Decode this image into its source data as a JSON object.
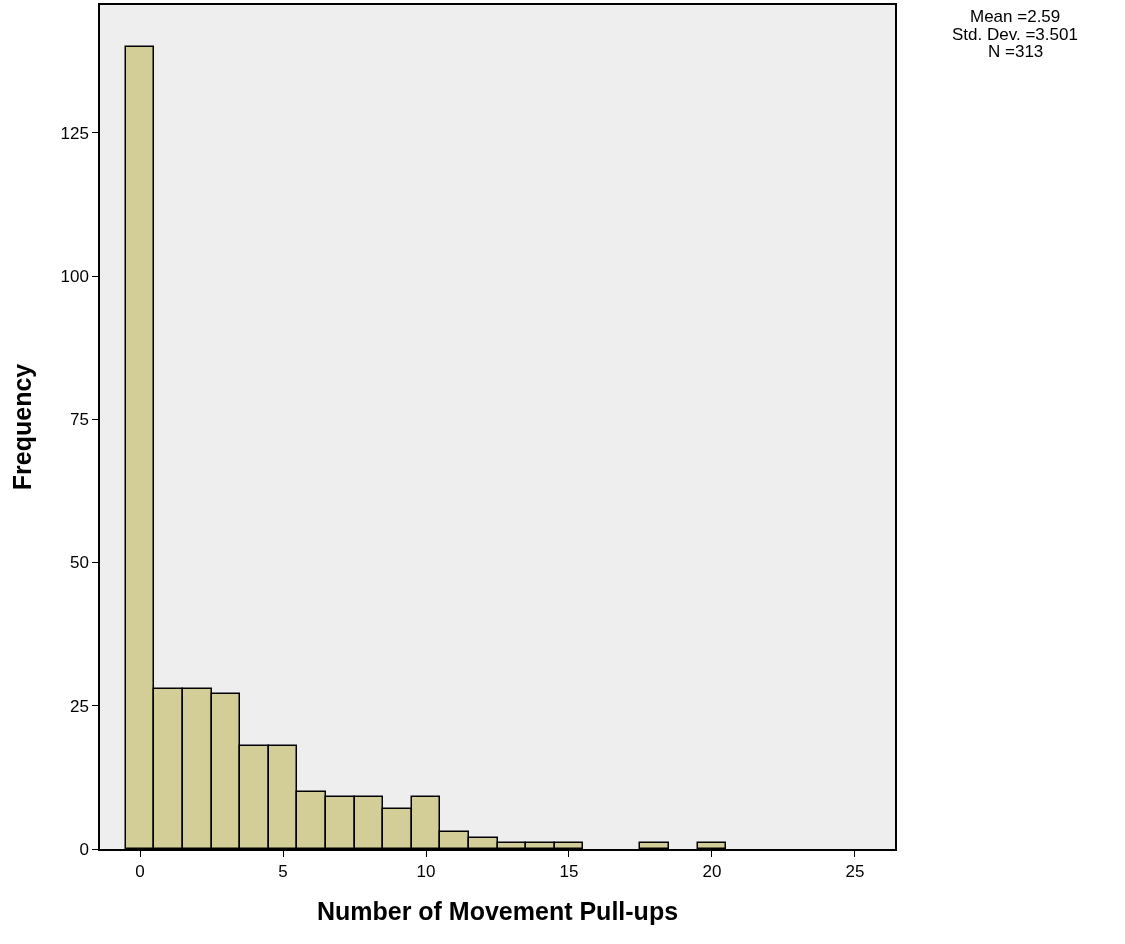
{
  "chart_data": {
    "type": "histogram",
    "xlabel": "Number of Movement Pull-ups",
    "ylabel": "Frequency",
    "annotations": [
      "Mean =2.59",
      "Std. Dev. =3.501",
      "N =313"
    ],
    "bins": [
      -0.5,
      0.5,
      1.5,
      2.5,
      3.5,
      4.5,
      5.5,
      6.5,
      7.5,
      8.5,
      9.5,
      10.5,
      11.5,
      12.5,
      13.5,
      14.5,
      15.5,
      16.5,
      17.5,
      18.5,
      19.5,
      20.5
    ],
    "values": [
      140,
      28,
      28,
      27,
      18,
      18,
      10,
      9,
      9,
      7,
      9,
      3,
      2,
      1,
      1,
      1,
      0,
      0,
      1,
      0,
      1
    ],
    "color": "#d3ce97",
    "xlim": [
      -1.4,
      26.4
    ],
    "xticks": [
      0,
      5,
      10,
      15,
      20,
      25
    ],
    "ylim": [
      0,
      147.3
    ],
    "yticks": [
      0,
      25,
      50,
      75,
      100,
      125
    ],
    "grid": false
  }
}
